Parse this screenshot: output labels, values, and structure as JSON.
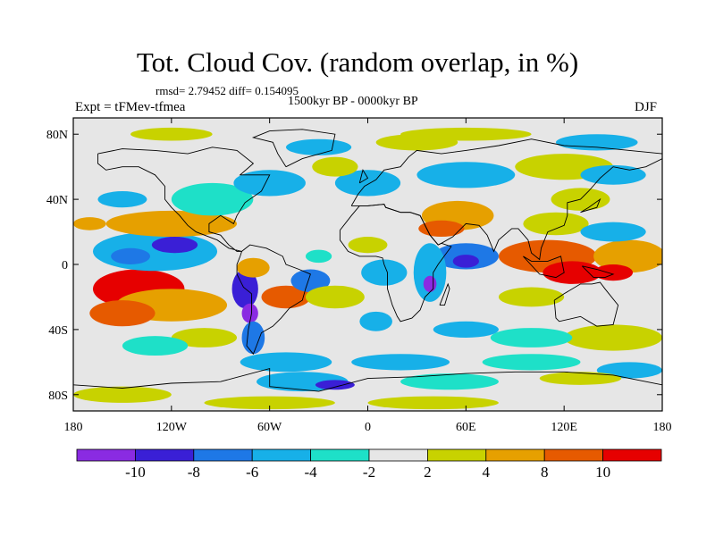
{
  "title": "Tot. Cloud Cov. (random overlap, in %)",
  "stats": "rmsd= 2.79452 diff= 0.154095",
  "period": "1500kyr BP - 0000kyr BP",
  "experiment": "Expt = tFMev-tfmea",
  "season": "DJF",
  "map": {
    "lon_range": [
      -180,
      180
    ],
    "lat_range": [
      -90,
      90
    ],
    "background_color": "#e6e6e6",
    "x_ticks": [
      {
        "label": "180",
        "lon": -180
      },
      {
        "label": "120W",
        "lon": -120
      },
      {
        "label": "60W",
        "lon": -60
      },
      {
        "label": "0",
        "lon": 0
      },
      {
        "label": "60E",
        "lon": 60
      },
      {
        "label": "120E",
        "lon": 120
      },
      {
        "label": "180",
        "lon": 180
      }
    ],
    "y_ticks": [
      {
        "label": "80N",
        "lat": 80
      },
      {
        "label": "40N",
        "lat": 40
      },
      {
        "label": "0",
        "lat": 0
      },
      {
        "label": "40S",
        "lat": -40
      },
      {
        "label": "80S",
        "lat": -80
      }
    ]
  },
  "colorbar": {
    "colors": [
      "#8a2be2",
      "#3a1fd6",
      "#1e78e6",
      "#17b0e8",
      "#1ee0c8",
      "#e6e6e6",
      "#c8d200",
      "#e6a000",
      "#e65a00",
      "#e60000"
    ],
    "labels": [
      "-10",
      "-8",
      "-6",
      "-4",
      "-2",
      "2",
      "4",
      "8",
      "10"
    ]
  },
  "anomalies": [
    {
      "lon": -140,
      "lat": -15,
      "rx": 28,
      "ry": 12,
      "level": 9
    },
    {
      "lon": -120,
      "lat": -25,
      "rx": 34,
      "ry": 10,
      "level": 7
    },
    {
      "lon": -150,
      "lat": -30,
      "rx": 20,
      "ry": 8,
      "level": 8
    },
    {
      "lon": -130,
      "lat": 8,
      "rx": 38,
      "ry": 12,
      "level": 3
    },
    {
      "lon": -145,
      "lat": 5,
      "rx": 12,
      "ry": 5,
      "level": 2
    },
    {
      "lon": -118,
      "lat": 12,
      "rx": 14,
      "ry": 5,
      "level": 1
    },
    {
      "lon": -120,
      "lat": 25,
      "rx": 40,
      "ry": 8,
      "level": 7
    },
    {
      "lon": -95,
      "lat": 40,
      "rx": 25,
      "ry": 10,
      "level": 4
    },
    {
      "lon": -60,
      "lat": 50,
      "rx": 22,
      "ry": 8,
      "level": 3
    },
    {
      "lon": -75,
      "lat": -15,
      "rx": 8,
      "ry": 12,
      "level": 1
    },
    {
      "lon": -72,
      "lat": -30,
      "rx": 5,
      "ry": 6,
      "level": 0
    },
    {
      "lon": -70,
      "lat": -45,
      "rx": 7,
      "ry": 10,
      "level": 2
    },
    {
      "lon": -50,
      "lat": -20,
      "rx": 15,
      "ry": 7,
      "level": 8
    },
    {
      "lon": -35,
      "lat": -10,
      "rx": 12,
      "ry": 7,
      "level": 2
    },
    {
      "lon": -20,
      "lat": -20,
      "rx": 18,
      "ry": 7,
      "level": 6
    },
    {
      "lon": -70,
      "lat": -2,
      "rx": 10,
      "ry": 6,
      "level": 7
    },
    {
      "lon": -30,
      "lat": 5,
      "rx": 8,
      "ry": 4,
      "level": 4
    },
    {
      "lon": 0,
      "lat": 12,
      "rx": 12,
      "ry": 5,
      "level": 6
    },
    {
      "lon": 10,
      "lat": -5,
      "rx": 14,
      "ry": 8,
      "level": 3
    },
    {
      "lon": 5,
      "lat": -35,
      "rx": 10,
      "ry": 6,
      "level": 3
    },
    {
      "lon": 60,
      "lat": 5,
      "rx": 20,
      "ry": 8,
      "level": 2
    },
    {
      "lon": 60,
      "lat": 2,
      "rx": 8,
      "ry": 4,
      "level": 1
    },
    {
      "lon": 38,
      "lat": -5,
      "rx": 10,
      "ry": 18,
      "level": 3
    },
    {
      "lon": 38,
      "lat": -12,
      "rx": 4,
      "ry": 5,
      "level": 0
    },
    {
      "lon": 55,
      "lat": 30,
      "rx": 22,
      "ry": 9,
      "level": 7
    },
    {
      "lon": 45,
      "lat": 22,
      "rx": 14,
      "ry": 5,
      "level": 8
    },
    {
      "lon": 60,
      "lat": 55,
      "rx": 30,
      "ry": 8,
      "level": 3
    },
    {
      "lon": 110,
      "lat": 5,
      "rx": 30,
      "ry": 10,
      "level": 8
    },
    {
      "lon": 125,
      "lat": -5,
      "rx": 18,
      "ry": 7,
      "level": 9
    },
    {
      "lon": 160,
      "lat": 5,
      "rx": 22,
      "ry": 10,
      "level": 7
    },
    {
      "lon": 150,
      "lat": -5,
      "rx": 12,
      "ry": 5,
      "level": 9
    },
    {
      "lon": 100,
      "lat": -20,
      "rx": 20,
      "ry": 6,
      "level": 6
    },
    {
      "lon": 115,
      "lat": 25,
      "rx": 20,
      "ry": 7,
      "level": 6
    },
    {
      "lon": 150,
      "lat": 20,
      "rx": 20,
      "ry": 6,
      "level": 3
    },
    {
      "lon": 130,
      "lat": 40,
      "rx": 18,
      "ry": 7,
      "level": 6
    },
    {
      "lon": 120,
      "lat": 60,
      "rx": 30,
      "ry": 8,
      "level": 6
    },
    {
      "lon": 150,
      "lat": 55,
      "rx": 20,
      "ry": 6,
      "level": 3
    },
    {
      "lon": 0,
      "lat": 50,
      "rx": 20,
      "ry": 8,
      "level": 3
    },
    {
      "lon": -20,
      "lat": 60,
      "rx": 14,
      "ry": 6,
      "level": 6
    },
    {
      "lon": -30,
      "lat": 72,
      "rx": 20,
      "ry": 5,
      "level": 3
    },
    {
      "lon": 30,
      "lat": 75,
      "rx": 25,
      "ry": 5,
      "level": 6
    },
    {
      "lon": -120,
      "lat": 80,
      "rx": 25,
      "ry": 4,
      "level": 6
    },
    {
      "lon": 60,
      "lat": 80,
      "rx": 40,
      "ry": 4,
      "level": 6
    },
    {
      "lon": 140,
      "lat": 75,
      "rx": 25,
      "ry": 5,
      "level": 3
    },
    {
      "lon": -150,
      "lat": 40,
      "rx": 15,
      "ry": 5,
      "level": 3
    },
    {
      "lon": -170,
      "lat": 25,
      "rx": 10,
      "ry": 4,
      "level": 7
    },
    {
      "lon": 150,
      "lat": -45,
      "rx": 30,
      "ry": 8,
      "level": 6
    },
    {
      "lon": 100,
      "lat": -45,
      "rx": 25,
      "ry": 6,
      "level": 4
    },
    {
      "lon": 60,
      "lat": -40,
      "rx": 20,
      "ry": 5,
      "level": 3
    },
    {
      "lon": -100,
      "lat": -45,
      "rx": 20,
      "ry": 6,
      "level": 6
    },
    {
      "lon": -130,
      "lat": -50,
      "rx": 20,
      "ry": 6,
      "level": 4
    },
    {
      "lon": -50,
      "lat": -60,
      "rx": 28,
      "ry": 6,
      "level": 3
    },
    {
      "lon": 20,
      "lat": -60,
      "rx": 30,
      "ry": 5,
      "level": 3
    },
    {
      "lon": 100,
      "lat": -60,
      "rx": 30,
      "ry": 5,
      "level": 4
    },
    {
      "lon": 160,
      "lat": -65,
      "rx": 20,
      "ry": 5,
      "level": 3
    },
    {
      "lon": -40,
      "lat": -72,
      "rx": 28,
      "ry": 6,
      "level": 3
    },
    {
      "lon": -20,
      "lat": -74,
      "rx": 12,
      "ry": 3,
      "level": 1
    },
    {
      "lon": 50,
      "lat": -72,
      "rx": 30,
      "ry": 5,
      "level": 4
    },
    {
      "lon": 130,
      "lat": -70,
      "rx": 25,
      "ry": 4,
      "level": 6
    },
    {
      "lon": -150,
      "lat": -80,
      "rx": 30,
      "ry": 5,
      "level": 6
    },
    {
      "lon": -60,
      "lat": -85,
      "rx": 40,
      "ry": 4,
      "level": 6
    },
    {
      "lon": 40,
      "lat": -85,
      "rx": 40,
      "ry": 4,
      "level": 6
    }
  ],
  "coastlines": [
    [
      [
        -165,
        68
      ],
      [
        -150,
        71
      ],
      [
        -130,
        70
      ],
      [
        -110,
        68
      ],
      [
        -95,
        72
      ],
      [
        -80,
        70
      ],
      [
        -70,
        62
      ],
      [
        -78,
        55
      ],
      [
        -60,
        55
      ],
      [
        -65,
        45
      ],
      [
        -75,
        38
      ],
      [
        -80,
        30
      ],
      [
        -82,
        25
      ],
      [
        -90,
        30
      ],
      [
        -97,
        25
      ],
      [
        -97,
        20
      ],
      [
        -90,
        18
      ],
      [
        -85,
        12
      ],
      [
        -80,
        8
      ],
      [
        -77,
        8
      ],
      [
        -85,
        10
      ],
      [
        -92,
        15
      ],
      [
        -105,
        20
      ],
      [
        -110,
        24
      ],
      [
        -115,
        30
      ],
      [
        -120,
        35
      ],
      [
        -124,
        40
      ],
      [
        -124,
        48
      ],
      [
        -130,
        55
      ],
      [
        -140,
        60
      ],
      [
        -150,
        60
      ],
      [
        -160,
        58
      ],
      [
        -165,
        62
      ],
      [
        -165,
        68
      ]
    ],
    [
      [
        -77,
        8
      ],
      [
        -72,
        12
      ],
      [
        -62,
        10
      ],
      [
        -52,
        5
      ],
      [
        -50,
        0
      ],
      [
        -42,
        -3
      ],
      [
        -35,
        -6
      ],
      [
        -38,
        -15
      ],
      [
        -40,
        -22
      ],
      [
        -48,
        -27
      ],
      [
        -53,
        -33
      ],
      [
        -58,
        -38
      ],
      [
        -65,
        -42
      ],
      [
        -68,
        -50
      ],
      [
        -70,
        -55
      ],
      [
        -74,
        -50
      ],
      [
        -73,
        -40
      ],
      [
        -71,
        -30
      ],
      [
        -71,
        -18
      ],
      [
        -76,
        -14
      ],
      [
        -80,
        -6
      ],
      [
        -80,
        0
      ],
      [
        -78,
        5
      ],
      [
        -77,
        8
      ]
    ],
    [
      [
        -50,
        60
      ],
      [
        -40,
        65
      ],
      [
        -22,
        70
      ],
      [
        -20,
        80
      ],
      [
        -40,
        83
      ],
      [
        -60,
        82
      ],
      [
        -70,
        78
      ],
      [
        -58,
        75
      ],
      [
        -55,
        68
      ],
      [
        -50,
        60
      ]
    ],
    [
      [
        -10,
        36
      ],
      [
        -6,
        43
      ],
      [
        -2,
        48
      ],
      [
        5,
        52
      ],
      [
        10,
        58
      ],
      [
        20,
        60
      ],
      [
        25,
        66
      ],
      [
        30,
        70
      ],
      [
        45,
        68
      ],
      [
        60,
        70
      ],
      [
        80,
        73
      ],
      [
        100,
        77
      ],
      [
        120,
        73
      ],
      [
        140,
        72
      ],
      [
        160,
        70
      ],
      [
        180,
        68
      ],
      [
        180,
        65
      ],
      [
        170,
        60
      ],
      [
        160,
        58
      ],
      [
        150,
        60
      ],
      [
        142,
        53
      ],
      [
        135,
        45
      ],
      [
        130,
        40
      ],
      [
        122,
        38
      ],
      [
        122,
        30
      ],
      [
        120,
        24
      ],
      [
        110,
        20
      ],
      [
        106,
        10
      ],
      [
        105,
        3
      ],
      [
        100,
        7
      ],
      [
        98,
        15
      ],
      [
        92,
        22
      ],
      [
        88,
        22
      ],
      [
        80,
        15
      ],
      [
        77,
        8
      ],
      [
        73,
        18
      ],
      [
        68,
        24
      ],
      [
        60,
        25
      ],
      [
        57,
        22
      ],
      [
        52,
        17
      ],
      [
        45,
        13
      ],
      [
        43,
        12
      ],
      [
        38,
        18
      ],
      [
        32,
        30
      ],
      [
        26,
        32
      ],
      [
        20,
        32
      ],
      [
        11,
        35
      ],
      [
        10,
        37
      ],
      [
        0,
        36
      ],
      [
        -5,
        36
      ],
      [
        -10,
        36
      ]
    ],
    [
      [
        -17,
        21
      ],
      [
        -17,
        15
      ],
      [
        -12,
        8
      ],
      [
        -5,
        5
      ],
      [
        5,
        5
      ],
      [
        9,
        4
      ],
      [
        10,
        0
      ],
      [
        12,
        -5
      ],
      [
        12,
        -15
      ],
      [
        15,
        -25
      ],
      [
        18,
        -32
      ],
      [
        20,
        -35
      ],
      [
        27,
        -33
      ],
      [
        32,
        -28
      ],
      [
        35,
        -20
      ],
      [
        40,
        -15
      ],
      [
        40,
        -5
      ],
      [
        43,
        0
      ],
      [
        51,
        11
      ],
      [
        45,
        13
      ],
      [
        43,
        12
      ],
      [
        38,
        18
      ],
      [
        32,
        30
      ],
      [
        26,
        32
      ],
      [
        20,
        32
      ],
      [
        11,
        35
      ],
      [
        10,
        37
      ],
      [
        0,
        36
      ],
      [
        -5,
        36
      ],
      [
        -10,
        30
      ],
      [
        -17,
        21
      ]
    ],
    [
      [
        114,
        -22
      ],
      [
        120,
        -18
      ],
      [
        130,
        -12
      ],
      [
        137,
        -12
      ],
      [
        142,
        -11
      ],
      [
        145,
        -15
      ],
      [
        153,
        -25
      ],
      [
        150,
        -37
      ],
      [
        140,
        -38
      ],
      [
        135,
        -35
      ],
      [
        130,
        -32
      ],
      [
        117,
        -35
      ],
      [
        115,
        -33
      ],
      [
        114,
        -22
      ]
    ],
    [
      [
        -180,
        -74
      ],
      [
        -150,
        -76
      ],
      [
        -120,
        -73
      ],
      [
        -90,
        -72
      ],
      [
        -60,
        -64
      ],
      [
        -60,
        -75
      ],
      [
        -30,
        -78
      ],
      [
        0,
        -70
      ],
      [
        30,
        -69
      ],
      [
        60,
        -67
      ],
      [
        90,
        -66
      ],
      [
        120,
        -66
      ],
      [
        150,
        -68
      ],
      [
        170,
        -72
      ],
      [
        180,
        -74
      ]
    ],
    [
      [
        95,
        5
      ],
      [
        105,
        -6
      ],
      [
        115,
        -8
      ],
      [
        120,
        -5
      ],
      [
        118,
        5
      ],
      [
        110,
        2
      ],
      [
        100,
        2
      ],
      [
        95,
        5
      ]
    ],
    [
      [
        131,
        -1
      ],
      [
        140,
        -3
      ],
      [
        150,
        -6
      ],
      [
        145,
        -8
      ],
      [
        138,
        -8
      ],
      [
        131,
        -1
      ]
    ],
    [
      [
        44,
        -25
      ],
      [
        49,
        -12
      ],
      [
        50,
        -15
      ],
      [
        47,
        -25
      ],
      [
        44,
        -25
      ]
    ],
    [
      [
        -5,
        50
      ],
      [
        -3,
        58
      ],
      [
        0,
        53
      ],
      [
        -5,
        50
      ]
    ],
    [
      [
        130,
        32
      ],
      [
        135,
        35
      ],
      [
        142,
        40
      ],
      [
        140,
        35
      ],
      [
        130,
        32
      ]
    ]
  ]
}
